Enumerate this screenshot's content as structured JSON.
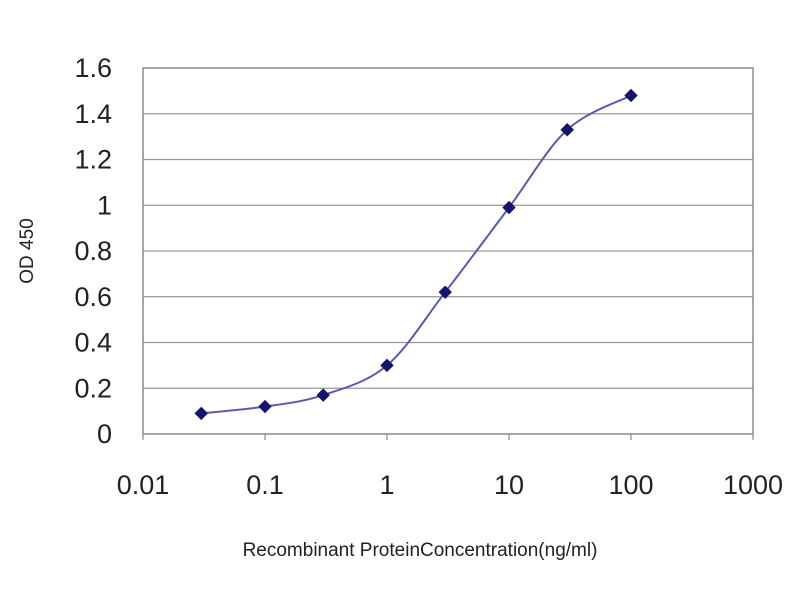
{
  "chart_data": {
    "type": "line",
    "title": "",
    "xlabel": "Recombinant ProteinConcentration(ng/ml)",
    "ylabel": "OD 450",
    "xscale": "log",
    "xlim": [
      0.01,
      1000
    ],
    "ylim": [
      0,
      1.6
    ],
    "xticks": [
      "0.01",
      "0.1",
      "1",
      "10",
      "100",
      "1000"
    ],
    "yticks": [
      "0",
      "0.2",
      "0.4",
      "0.6",
      "0.8",
      "1",
      "1.2",
      "1.4",
      "1.6"
    ],
    "grid": "horizontal",
    "legend": "none",
    "line_color": "#5a5ab4",
    "marker_color": "#14146e",
    "series": [
      {
        "x": [
          0.03,
          0.1,
          0.3,
          1,
          3,
          10,
          30,
          100
        ],
        "y": [
          0.09,
          0.12,
          0.17,
          0.3,
          0.62,
          0.99,
          1.33,
          1.48
        ]
      }
    ]
  }
}
